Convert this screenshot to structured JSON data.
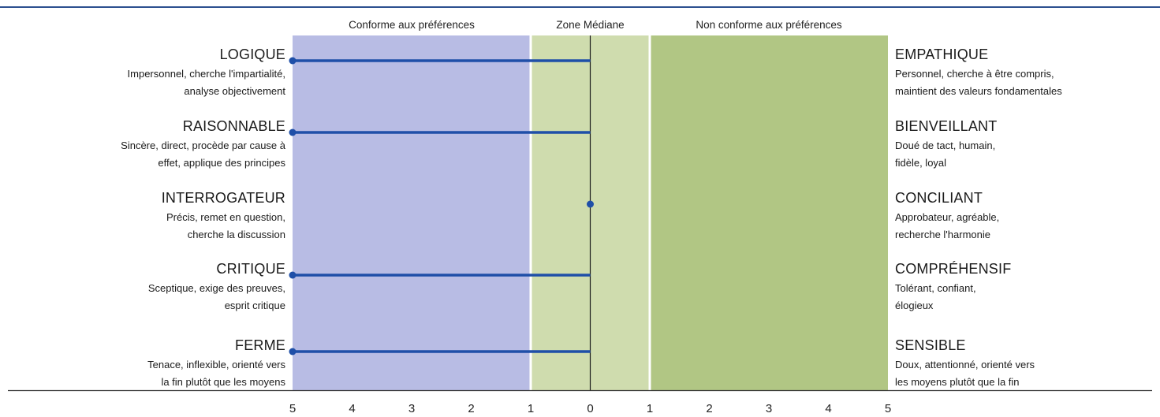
{
  "chart_data": {
    "type": "bar",
    "orientation": "horizontal",
    "zones": [
      {
        "label": "Conforme aux préférences",
        "from": -5,
        "to": -1,
        "color": "#b8bce4"
      },
      {
        "label": "Zone Médiane",
        "from": -1,
        "to": 1,
        "color": "#cfdcae"
      },
      {
        "label": "Non conforme aux préférences",
        "from": 1,
        "to": 5,
        "color": "#b1c684"
      }
    ],
    "x_ticks": [
      "5",
      "4",
      "3",
      "2",
      "1",
      "0",
      "1",
      "2",
      "3",
      "4",
      "5"
    ],
    "xlim": [
      -5,
      5
    ],
    "bar_color": "#1f4fa8",
    "rows": [
      {
        "left_title": "LOGIQUE",
        "left_desc": [
          "Impersonnel, cherche l'impartialité,",
          "analyse objectivement"
        ],
        "right_title": "EMPATHIQUE",
        "right_desc": [
          "Personnel, cherche à être compris,",
          "maintient des valeurs fondamentales"
        ],
        "value": -5
      },
      {
        "left_title": "RAISONNABLE",
        "left_desc": [
          "Sincère, direct, procède par cause à",
          "effet, applique des principes"
        ],
        "right_title": "BIENVEILLANT",
        "right_desc": [
          "Doué de tact, humain,",
          "fidèle, loyal"
        ],
        "value": -5
      },
      {
        "left_title": "INTERROGATEUR",
        "left_desc": [
          "Précis, remet en question,",
          "cherche la discussion"
        ],
        "right_title": "CONCILIANT",
        "right_desc": [
          "Approbateur, agréable,",
          "recherche l'harmonie"
        ],
        "value": 0
      },
      {
        "left_title": "CRITIQUE",
        "left_desc": [
          "Sceptique, exige des preuves,",
          "esprit critique"
        ],
        "right_title": "COMPRÉHENSIF",
        "right_desc": [
          "Tolérant, confiant,",
          "élogieux"
        ],
        "value": -5
      },
      {
        "left_title": "FERME",
        "left_desc": [
          "Tenace, inflexible, orienté vers",
          "la fin plutôt que les moyens"
        ],
        "right_title": "SENSIBLE",
        "right_desc": [
          "Doux, attentionné, orienté vers",
          "les moyens plutôt que la fin"
        ],
        "value": -5
      }
    ]
  }
}
